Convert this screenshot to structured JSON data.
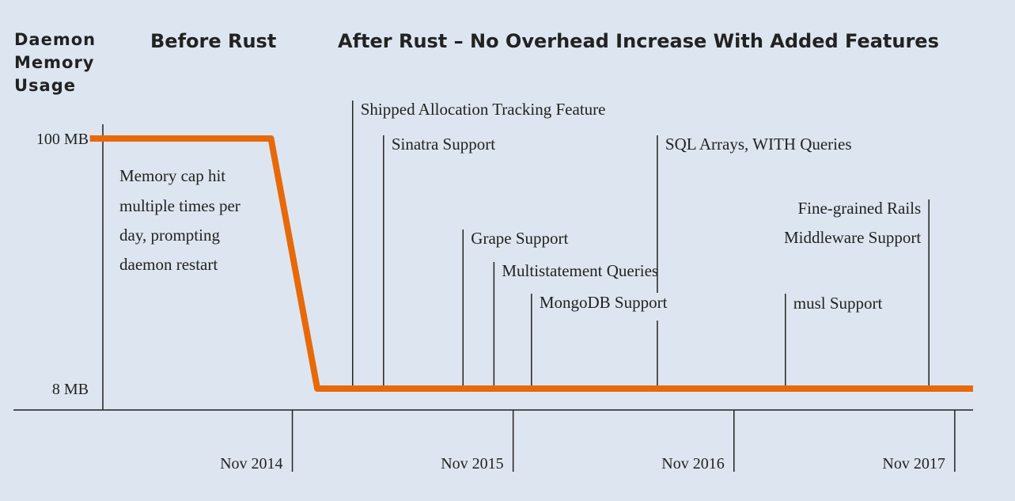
{
  "chart_data": {
    "type": "line",
    "ylabel_lines": [
      "Daemon",
      "Memory",
      "Usage"
    ],
    "section_titles": {
      "before": "Before Rust",
      "after": "After Rust – No Overhead Increase With Added Features"
    },
    "y_ticks": [
      {
        "label": "100 MB",
        "value": 100
      },
      {
        "label": "8 MB",
        "value": 8
      }
    ],
    "x_ticks": [
      {
        "label": "Nov 2014",
        "x": 2014.917
      },
      {
        "label": "Nov 2015",
        "x": 2015.917
      },
      {
        "label": "Nov 2016",
        "x": 2016.917
      },
      {
        "label": "Nov 2017",
        "x": 2017.917
      }
    ],
    "series": [
      {
        "color": "#e8690a",
        "points": [
          {
            "x": 2014.0,
            "y": 100
          },
          {
            "x": 2014.82,
            "y": 100
          },
          {
            "x": 2015.03,
            "y": 8
          },
          {
            "x": 2018.0,
            "y": 8
          }
        ]
      }
    ],
    "note_lines": [
      "Memory cap hit",
      "multiple times per",
      "day, prompting",
      "daemon restart"
    ],
    "annotations": [
      {
        "lines": [
          "Shipped Allocation Tracking Feature"
        ],
        "x": 2015.19
      },
      {
        "lines": [
          "Sinatra Support"
        ],
        "x": 2015.33
      },
      {
        "lines": [
          "Grape Support"
        ],
        "x": 2015.69
      },
      {
        "lines": [
          "Multistatement Queries"
        ],
        "x": 2015.83
      },
      {
        "lines": [
          "MongoDB Support"
        ],
        "x": 2016.0
      },
      {
        "lines": [
          "SQL Arrays, WITH Queries"
        ],
        "x": 2016.57
      },
      {
        "lines": [
          "musl Support"
        ],
        "x": 2017.15
      },
      {
        "lines": [
          "Fine-grained Rails",
          "Middleware Support"
        ],
        "x": 2017.8
      }
    ],
    "xlim": [
      2013.6,
      2018.0
    ],
    "ylim": [
      0,
      100
    ]
  }
}
